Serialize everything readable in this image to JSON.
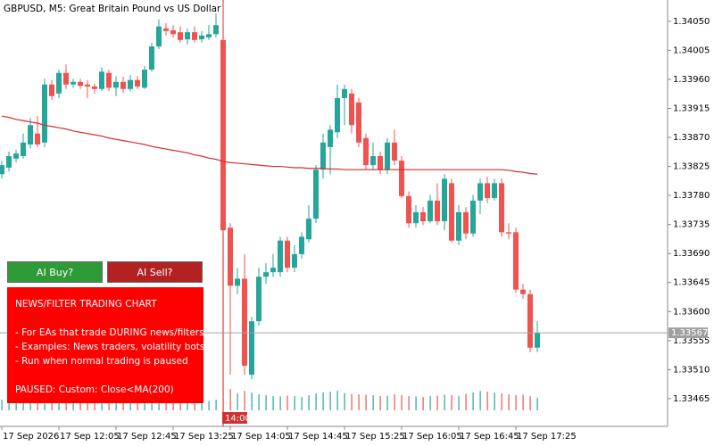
{
  "chart_data": {
    "type": "candlestick",
    "title": "GBPUSD, M5:  Great Britain Pound vs US Dollar",
    "categories": [
      "17 Sep 2026",
      null,
      null,
      null,
      null,
      null,
      null,
      null,
      "17 Sep 12:05",
      null,
      null,
      null,
      null,
      null,
      null,
      null,
      "17 Sep 12:45",
      null,
      null,
      null,
      null,
      null,
      null,
      null,
      "17 Sep 13:25",
      null,
      null,
      null,
      null,
      null,
      null,
      null,
      "17 Sep 14:05",
      null,
      null,
      null,
      null,
      null,
      null,
      null,
      "17 Sep 14:45",
      null,
      null,
      null,
      null,
      null,
      null,
      null,
      "17 Sep 15:25",
      null,
      null,
      null,
      null,
      null,
      null,
      null,
      "17 Sep 16:05",
      null,
      null,
      null,
      null,
      null,
      null,
      null,
      "17 Sep 16:45",
      null,
      null,
      null,
      null,
      null,
      null,
      null,
      "17 Sep 17:25",
      null,
      null,
      null
    ],
    "open": [
      1.33813,
      1.33823,
      1.33837,
      1.33841,
      1.33859,
      1.33876,
      1.33862,
      1.33952,
      1.33938,
      1.3397,
      1.33952,
      1.33956,
      1.33952,
      1.33949,
      1.33945,
      1.3397,
      1.33947,
      1.33956,
      1.33945,
      1.33959,
      1.33947,
      1.33975,
      1.34011,
      1.34039,
      1.34036,
      1.34033,
      1.34022,
      1.34033,
      1.34022,
      1.34025,
      1.3403,
      1.34021,
      1.3373,
      1.3364,
      1.33651,
      1.33502,
      1.33585,
      1.33654,
      1.33661,
      1.33661,
      1.3371,
      1.33668,
      1.33689,
      1.33712,
      1.33744,
      1.3382,
      1.33855,
      1.33878,
      1.33931,
      1.33938,
      1.33924,
      1.33869,
      1.33827,
      1.33841,
      1.3382,
      1.33862,
      1.33834,
      1.33779,
      1.33737,
      1.33754,
      1.3374,
      1.33772,
      1.3374,
      1.33799,
      1.3371,
      1.33754,
      1.33721,
      1.33772,
      1.33799,
      1.33776,
      1.33799,
      1.33723,
      1.33723,
      1.33634,
      1.33627,
      1.33544
    ],
    "high": [
      1.33834,
      1.33848,
      1.33851,
      1.33876,
      1.339,
      1.33903,
      1.33961,
      1.33959,
      1.33975,
      1.33983,
      1.33961,
      1.33961,
      1.33959,
      1.33953,
      1.33979,
      1.33975,
      1.33965,
      1.33964,
      1.33967,
      1.33965,
      1.33981,
      1.34017,
      1.34053,
      1.34047,
      1.34044,
      1.34042,
      1.34039,
      1.34042,
      1.34035,
      1.34044,
      1.34062,
      1.3408,
      1.33737,
      1.33668,
      1.33689,
      1.33592,
      1.33668,
      1.33675,
      1.33689,
      1.33716,
      1.33716,
      1.33703,
      1.33723,
      1.33765,
      1.33827,
      1.33876,
      1.33889,
      1.33952,
      1.33952,
      1.33945,
      1.33931,
      1.33876,
      1.33862,
      1.33848,
      1.33869,
      1.33882,
      1.33841,
      1.33786,
      1.33765,
      1.33762,
      1.33781,
      1.33799,
      1.33813,
      1.33806,
      1.33765,
      1.33762,
      1.33781,
      1.33806,
      1.33809,
      1.33806,
      1.33806,
      1.33737,
      1.3373,
      1.33643,
      1.33634,
      1.33585
    ],
    "low": [
      1.33806,
      1.33817,
      1.33831,
      1.33837,
      1.33853,
      1.33855,
      1.33855,
      1.33928,
      1.33931,
      1.33945,
      1.33947,
      1.33945,
      1.33931,
      1.33938,
      1.33942,
      1.33942,
      1.33934,
      1.33939,
      1.33941,
      1.33945,
      1.33945,
      1.33972,
      1.34007,
      1.34028,
      1.34025,
      1.34017,
      1.34014,
      1.34017,
      1.34017,
      1.34021,
      1.34025,
      1.33721,
      1.33502,
      1.33627,
      1.33502,
      1.33495,
      1.33578,
      1.33643,
      1.33654,
      1.33654,
      1.33661,
      1.33661,
      1.33682,
      1.33707,
      1.33737,
      1.33806,
      1.33813,
      1.33869,
      1.33889,
      1.33876,
      1.33855,
      1.3382,
      1.3382,
      1.33813,
      1.33813,
      1.33827,
      1.33776,
      1.3373,
      1.3373,
      1.33734,
      1.33737,
      1.33734,
      1.33726,
      1.33707,
      1.33703,
      1.33712,
      1.33716,
      1.33751,
      1.33768,
      1.33772,
      1.33716,
      1.33712,
      1.33629,
      1.3362,
      1.33537,
      1.33537
    ],
    "close": [
      1.33827,
      1.33841,
      1.33845,
      1.33862,
      1.33889,
      1.33859,
      1.33952,
      1.33934,
      1.3397,
      1.33952,
      1.33956,
      1.3395,
      1.33949,
      1.33945,
      1.33972,
      1.33947,
      1.33956,
      1.33945,
      1.33959,
      1.33949,
      1.33975,
      1.34011,
      1.34042,
      1.34035,
      1.3403,
      1.34021,
      1.34033,
      1.34021,
      1.34028,
      1.3403,
      1.34044,
      1.33726,
      1.3364,
      1.33651,
      1.33516,
      1.33585,
      1.33654,
      1.33661,
      1.33668,
      1.3371,
      1.33668,
      1.33689,
      1.33716,
      1.33744,
      1.3382,
      1.33862,
      1.33882,
      1.33931,
      1.33945,
      1.33889,
      1.33862,
      1.33827,
      1.33841,
      1.3382,
      1.33862,
      1.33834,
      1.33779,
      1.33737,
      1.33754,
      1.3374,
      1.33772,
      1.3374,
      1.33806,
      1.3371,
      1.33754,
      1.33721,
      1.33772,
      1.33799,
      1.33776,
      1.33799,
      1.33723,
      1.33721,
      1.33634,
      1.33627,
      1.33544,
      1.33567
    ],
    "up_color": "#26a69a",
    "down_color": "#ef5350",
    "ma_values": [
      1.33903,
      1.33901,
      1.33898,
      1.33896,
      1.33894,
      1.33892,
      1.33889,
      1.33887,
      1.33885,
      1.33883,
      1.3388,
      1.33878,
      1.33876,
      1.33874,
      1.33872,
      1.33869,
      1.33867,
      1.33865,
      1.33863,
      1.33861,
      1.33859,
      1.33856,
      1.33854,
      1.33852,
      1.3385,
      1.33848,
      1.33846,
      1.33843,
      1.33841,
      1.33838,
      1.33836,
      1.33833,
      1.33831,
      1.3383,
      1.33829,
      1.33828,
      1.33827,
      1.33826,
      1.33825,
      1.33825,
      1.33824,
      1.33823,
      1.33823,
      1.33822,
      1.33822,
      1.33822,
      1.33821,
      1.33821,
      1.3382,
      1.3382,
      1.3382,
      1.3382,
      1.3382,
      1.3382,
      1.3382,
      1.3382,
      1.3382,
      1.3382,
      1.3382,
      1.3382,
      1.3382,
      1.3382,
      1.3382,
      1.3382,
      1.3382,
      1.3382,
      1.3382,
      1.3382,
      1.3382,
      1.3382,
      1.3382,
      1.33819,
      1.33817,
      1.33816,
      1.33814,
      1.33813
    ],
    "ma_color": "#d32f2f",
    "volumes": [
      60,
      55,
      50,
      58,
      65,
      60,
      70,
      62,
      55,
      50,
      48,
      52,
      50,
      47,
      55,
      50,
      52,
      48,
      55,
      50,
      58,
      62,
      65,
      55,
      52,
      50,
      48,
      50,
      47,
      52,
      60,
      130,
      120,
      95,
      110,
      100,
      90,
      85,
      80,
      78,
      82,
      80,
      75,
      85,
      95,
      100,
      105,
      110,
      98,
      92,
      90,
      88,
      85,
      80,
      82,
      90,
      85,
      80,
      78,
      75,
      80,
      82,
      88,
      85,
      80,
      92,
      100,
      110,
      105,
      100,
      95,
      90,
      85,
      88,
      80,
      70
    ],
    "volume_lim": [
      0,
      2400
    ],
    "ylim": [
      1.33422,
      1.34083
    ],
    "yticks": [
      {
        "value": 1.3405,
        "label": "1.34050"
      },
      1.34005,
      {
        "value": 1.3396,
        "label": "1.33960"
      },
      1.33915,
      {
        "value": 1.3387,
        "label": "1.33870"
      },
      1.33825,
      {
        "value": 1.3378,
        "label": "1.33780"
      },
      1.33735,
      {
        "value": 1.3369,
        "label": "1.33690"
      },
      1.33645,
      {
        "value": 1.336,
        "label": "1.33600"
      },
      1.33555,
      {
        "value": 1.3351,
        "label": "1.33510"
      },
      1.33465
    ],
    "current_price": 1.33567,
    "separator_label": "14:00"
  },
  "buttons": [
    "AI Buy?",
    "AI Sell?"
  ],
  "panel": {
    "heading": "NEWS/FILTER TRADING CHART",
    "lines": [
      "- For EAs that trade DURING news/filters",
      "- Examples: News traders, volatility bots",
      "- Run when normal trading is paused"
    ],
    "status": "PAUSED: Custom: Close<MA(200)"
  }
}
